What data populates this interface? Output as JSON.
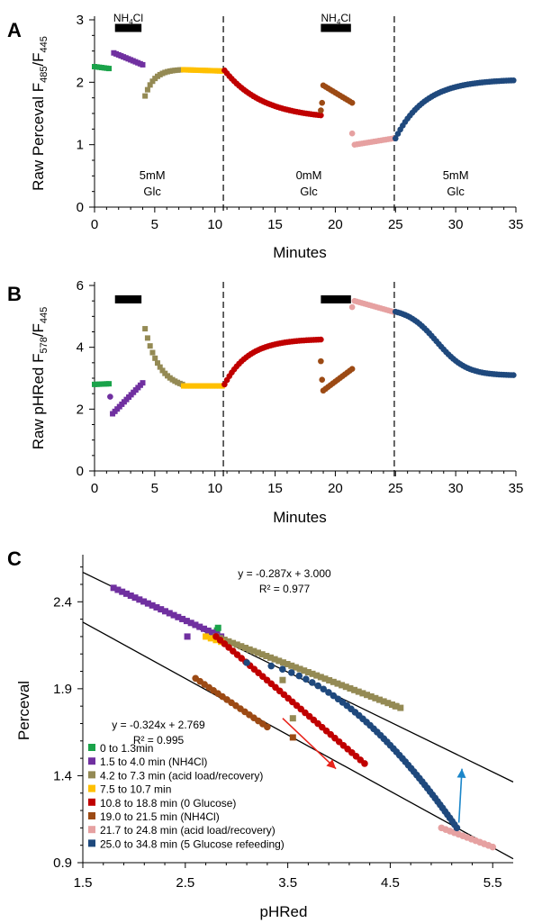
{
  "chart_data": [
    {
      "panel_label": "A",
      "type": "scatter",
      "ylabel_prefix": "Raw Perceval F",
      "ylabel_sub1": "485",
      "ylabel_mid": "/F",
      "ylabel_sub2": "445",
      "xlabel": "Minutes",
      "xlim": [
        0,
        35
      ],
      "ylim": [
        0,
        3
      ],
      "xticks": [
        "0",
        "5",
        "10",
        "15",
        "20",
        "25",
        "30",
        "35"
      ],
      "yticks": [
        "0",
        "1",
        "2",
        "3"
      ],
      "vlines": [
        10.7,
        24.9
      ],
      "bars": [
        {
          "x0": 1.7,
          "x1": 3.9,
          "y": 2.87,
          "label_main": "NH",
          "label_sub": "4",
          "label_end": "Cl"
        },
        {
          "x0": 18.8,
          "x1": 21.3,
          "y": 2.87,
          "label_main": "NH",
          "label_sub": "4",
          "label_end": "Cl"
        }
      ],
      "conditions": [
        {
          "x": 4.8,
          "line1": "5mM",
          "line2": "Glc"
        },
        {
          "x": 17.8,
          "line1": "0mM",
          "line2": "Glc"
        },
        {
          "x": 30.0,
          "line1": "5mM",
          "line2": "Glc"
        }
      ],
      "segments": [
        {
          "color": "#1aa34a",
          "marker": "square",
          "x": [
            0,
            1.2
          ],
          "y": [
            2.25,
            2.22
          ],
          "shape": "linear"
        },
        {
          "color": "#7030a0",
          "marker": "square",
          "x": [
            1.6,
            4.0
          ],
          "y": [
            2.47,
            2.28
          ],
          "shape": "linear"
        },
        {
          "color": "#948a54",
          "marker": "square",
          "x": [
            4.2,
            7.3
          ],
          "y": [
            1.78,
            2.2
          ],
          "shape": "exp-rise"
        },
        {
          "color": "#ffc000",
          "marker": "square",
          "x": [
            7.4,
            10.6
          ],
          "y": [
            2.2,
            2.18
          ],
          "shape": "linear"
        },
        {
          "color": "#c00000",
          "marker": "circle",
          "x": [
            10.8,
            18.8
          ],
          "y": [
            2.19,
            1.47
          ],
          "shape": "exp-decay"
        },
        {
          "color": "#9c4a14",
          "marker": "circle",
          "x": [
            19.0,
            21.4
          ],
          "y": [
            1.95,
            1.67
          ],
          "shape": "linear"
        },
        {
          "color": "#e6a1a1",
          "marker": "circle",
          "x": [
            21.6,
            24.8
          ],
          "y": [
            1.0,
            1.1
          ],
          "shape": "linear"
        },
        {
          "color": "#1f497d",
          "marker": "circle",
          "x": [
            25.0,
            34.8
          ],
          "y": [
            1.1,
            2.03
          ],
          "shape": "exp-rise"
        }
      ],
      "extra_points": [
        {
          "color": "#9c4a14",
          "x": 18.8,
          "y": 1.55
        },
        {
          "color": "#9c4a14",
          "x": 18.9,
          "y": 1.67
        },
        {
          "color": "#e6a1a1",
          "x": 21.4,
          "y": 1.18
        }
      ]
    },
    {
      "panel_label": "B",
      "type": "scatter",
      "ylabel_prefix": "Raw pHRed F",
      "ylabel_sub1": "578",
      "ylabel_mid": "/F",
      "ylabel_sub2": "445",
      "xlabel": "Minutes",
      "xlim": [
        0,
        35
      ],
      "ylim": [
        0,
        6
      ],
      "xticks": [
        "0",
        "5",
        "10",
        "15",
        "20",
        "25",
        "30",
        "35"
      ],
      "yticks": [
        "0",
        "2",
        "4",
        "6"
      ],
      "vlines": [
        10.7,
        24.9
      ],
      "bars": [
        {
          "x0": 1.7,
          "x1": 3.9,
          "y": 5.55
        },
        {
          "x0": 18.8,
          "x1": 21.3,
          "y": 5.55
        }
      ],
      "segments": [
        {
          "color": "#1aa34a",
          "marker": "square",
          "x": [
            0,
            1.2
          ],
          "y": [
            2.8,
            2.82
          ],
          "shape": "linear"
        },
        {
          "color": "#7030a0",
          "marker": "square",
          "x": [
            1.5,
            4.0
          ],
          "y": [
            1.85,
            2.85
          ],
          "shape": "linear"
        },
        {
          "color": "#948a54",
          "marker": "square",
          "x": [
            4.2,
            7.3
          ],
          "y": [
            4.6,
            2.8
          ],
          "shape": "exp-decay"
        },
        {
          "color": "#ffc000",
          "marker": "square",
          "x": [
            7.4,
            10.6
          ],
          "y": [
            2.75,
            2.75
          ],
          "shape": "linear"
        },
        {
          "color": "#c00000",
          "marker": "circle",
          "x": [
            10.8,
            18.8
          ],
          "y": [
            2.8,
            4.25
          ],
          "shape": "exp-rise"
        },
        {
          "color": "#9c4a14",
          "marker": "circle",
          "x": [
            19.0,
            21.4
          ],
          "y": [
            2.6,
            3.3
          ],
          "shape": "linear"
        },
        {
          "color": "#e6a1a1",
          "marker": "circle",
          "x": [
            21.6,
            24.8
          ],
          "y": [
            5.5,
            5.15
          ],
          "shape": "linear"
        },
        {
          "color": "#1f497d",
          "marker": "circle",
          "x": [
            25.0,
            34.8
          ],
          "y": [
            5.15,
            3.1
          ],
          "shape": "sigmoid-drop"
        }
      ],
      "extra_points": [
        {
          "color": "#7030a0",
          "x": 1.3,
          "y": 2.4
        },
        {
          "color": "#9c4a14",
          "x": 18.8,
          "y": 3.55
        },
        {
          "color": "#9c4a14",
          "x": 18.9,
          "y": 2.95
        },
        {
          "color": "#e6a1a1",
          "x": 21.4,
          "y": 5.3
        }
      ]
    },
    {
      "panel_label": "C",
      "type": "scatter",
      "xlabel": "pHRed",
      "ylabel": "Perceval",
      "xlim": [
        1.5,
        5.7
      ],
      "ylim": [
        0.9,
        2.65
      ],
      "xticks": [
        "1.5",
        "2.5",
        "3.5",
        "4.5",
        "5.5"
      ],
      "yticks": [
        "0.9",
        "1.4",
        "1.9",
        "2.4"
      ],
      "fits": [
        {
          "slope": -0.287,
          "intercept": 3.0,
          "equation": "y = -0.287x + 3.000",
          "r2": "R² = 0.977"
        },
        {
          "slope": -0.324,
          "intercept": 2.769,
          "equation": "y = -0.324x + 2.769",
          "r2": "R² = 0.995"
        }
      ],
      "arrows": [
        {
          "color": "#e8241c",
          "from": [
            3.45,
            1.73
          ],
          "to": [
            3.97,
            1.44
          ]
        },
        {
          "color": "#1b86c9",
          "from": [
            5.17,
            1.13
          ],
          "to": [
            5.2,
            1.44
          ]
        }
      ],
      "legend_position": "bottom-left",
      "series": [
        {
          "name": "0 to 1.3min",
          "color": "#1aa34a",
          "marker": "square",
          "x": [
            2.8,
            2.82
          ],
          "y": [
            2.22,
            2.25
          ],
          "shape": "linear"
        },
        {
          "name": "1.5 to 4.0 min (NH4Cl)",
          "color": "#7030a0",
          "marker": "square",
          "x": [
            1.8,
            2.85
          ],
          "y": [
            2.48,
            2.2
          ],
          "shape": "linear"
        },
        {
          "name": "4.2 to 7.3 min (acid load/recovery)",
          "color": "#948a54",
          "marker": "square",
          "x": [
            2.8,
            4.6
          ],
          "y": [
            2.2,
            1.79
          ],
          "shape": "linear"
        },
        {
          "name": "7.5 to 10.7 min",
          "color": "#ffc000",
          "marker": "square",
          "x": [
            2.7,
            2.85
          ],
          "y": [
            2.2,
            2.17
          ],
          "shape": "linear"
        },
        {
          "name": "10.8 to 18.8 min (0 Glucose)",
          "color": "#c00000",
          "marker": "circle",
          "x": [
            2.8,
            4.25
          ],
          "y": [
            2.2,
            1.47
          ],
          "shape": "linear"
        },
        {
          "name": "19.0 to 21.5 min (NH4Cl)",
          "color": "#9c4a14",
          "marker": "circle",
          "x": [
            2.6,
            3.3
          ],
          "y": [
            1.96,
            1.68
          ],
          "shape": "linear"
        },
        {
          "name": "21.7 to 24.8 min (acid load/recovery)",
          "color": "#e6a1a1",
          "marker": "circle",
          "x": [
            5.0,
            5.5
          ],
          "y": [
            1.1,
            0.99
          ],
          "shape": "linear"
        },
        {
          "name": "25.0 to 34.8 min (5 Glucose refeeding)",
          "color": "#1f497d",
          "marker": "circle",
          "x": [
            3.1,
            5.15
          ],
          "y": [
            2.05,
            1.1
          ],
          "shape": "curve"
        }
      ],
      "extra_points": [
        {
          "color": "#948a54",
          "x": 4.55,
          "y": 1.8
        },
        {
          "color": "#948a54",
          "x": 3.45,
          "y": 1.95
        },
        {
          "color": "#948a54",
          "x": 3.55,
          "y": 1.73
        },
        {
          "color": "#7030a0",
          "x": 2.52,
          "y": 2.2
        },
        {
          "color": "#9c4a14",
          "x": 3.55,
          "y": 1.62
        }
      ]
    }
  ]
}
